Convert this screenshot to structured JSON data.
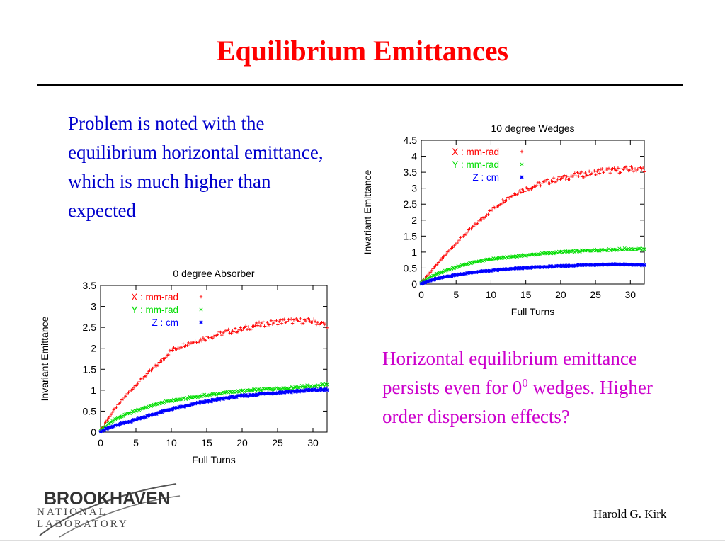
{
  "slide": {
    "title": "Equilibrium Emittances",
    "left_text": "Problem is noted with the equilibrium horizontal emittance, which is much higher than expected",
    "right_text_before": "Horizontal equilibrium emittance persists even for 0",
    "right_text_sup": "0",
    "right_text_after": " wedges.  Higher order dispersion effects?",
    "logo_top": "BROOKHAVEN",
    "logo_bottom": "NATIONAL LABORATORY",
    "author": "Harold G. Kirk",
    "colors": {
      "title": "#ff0000",
      "left_text": "#0000cc",
      "right_text": "#cc00cc"
    }
  },
  "chart_data": [
    {
      "type": "scatter",
      "title": "10 degree Wedges",
      "xlabel": "Full Turns",
      "ylabel": "Invariant Emittance",
      "xlim": [
        0,
        32
      ],
      "ylim": [
        0,
        4.5
      ],
      "xticks": [
        0,
        5,
        10,
        15,
        20,
        25,
        30
      ],
      "yticks": [
        0,
        0.5,
        1,
        1.5,
        2,
        2.5,
        3,
        3.5,
        4,
        4.5
      ],
      "grid": false,
      "legend": "top-left",
      "series": [
        {
          "name": "X : mm-rad",
          "marker": "+",
          "color": "#ff0000",
          "x": [
            0,
            2,
            4,
            6,
            8,
            10,
            12,
            14,
            16,
            18,
            20,
            22,
            24,
            26,
            28,
            30,
            32
          ],
          "y": [
            0.05,
            0.55,
            1.05,
            1.5,
            1.9,
            2.3,
            2.65,
            2.9,
            3.05,
            3.2,
            3.3,
            3.4,
            3.45,
            3.55,
            3.55,
            3.6,
            3.6
          ]
        },
        {
          "name": "Y : mm-rad",
          "marker": "x",
          "color": "#00dd00",
          "x": [
            0,
            2,
            4,
            6,
            8,
            10,
            12,
            14,
            16,
            18,
            20,
            22,
            24,
            26,
            28,
            30,
            32
          ],
          "y": [
            0.05,
            0.3,
            0.45,
            0.6,
            0.7,
            0.78,
            0.83,
            0.88,
            0.92,
            0.96,
            1.0,
            1.02,
            1.05,
            1.07,
            1.08,
            1.1,
            1.08
          ]
        },
        {
          "name": "Z : cm",
          "marker": "*",
          "color": "#0000ff",
          "x": [
            0,
            2,
            4,
            6,
            8,
            10,
            12,
            14,
            16,
            18,
            20,
            22,
            24,
            26,
            28,
            30,
            32
          ],
          "y": [
            0.02,
            0.15,
            0.25,
            0.32,
            0.38,
            0.42,
            0.46,
            0.49,
            0.52,
            0.54,
            0.56,
            0.58,
            0.6,
            0.61,
            0.62,
            0.6,
            0.6
          ]
        }
      ]
    },
    {
      "type": "scatter",
      "title": "0 degree Absorber",
      "xlabel": "Full Turns",
      "ylabel": "Invariant Emittance",
      "xlim": [
        0,
        32
      ],
      "ylim": [
        0,
        3.5
      ],
      "xticks": [
        0,
        5,
        10,
        15,
        20,
        25,
        30
      ],
      "yticks": [
        0,
        0.5,
        1,
        1.5,
        2,
        2.5,
        3,
        3.5
      ],
      "grid": false,
      "legend": "top-left",
      "series": [
        {
          "name": "X : mm-rad",
          "marker": "+",
          "color": "#ff0000",
          "x": [
            0,
            2,
            4,
            6,
            8,
            10,
            12,
            14,
            16,
            18,
            20,
            22,
            24,
            26,
            28,
            30,
            32
          ],
          "y": [
            0.05,
            0.55,
            0.95,
            1.3,
            1.6,
            1.95,
            2.1,
            2.2,
            2.3,
            2.4,
            2.45,
            2.55,
            2.6,
            2.65,
            2.65,
            2.65,
            2.55
          ]
        },
        {
          "name": "Y : mm-rad",
          "marker": "x",
          "color": "#00dd00",
          "x": [
            0,
            2,
            4,
            6,
            8,
            10,
            12,
            14,
            16,
            18,
            20,
            22,
            24,
            26,
            28,
            30,
            32
          ],
          "y": [
            0.05,
            0.3,
            0.45,
            0.57,
            0.67,
            0.75,
            0.8,
            0.86,
            0.9,
            0.95,
            0.98,
            1.0,
            1.03,
            1.05,
            1.08,
            1.1,
            1.12
          ]
        },
        {
          "name": "Z : cm",
          "marker": "*",
          "color": "#0000ff",
          "x": [
            0,
            2,
            4,
            6,
            8,
            10,
            12,
            14,
            16,
            18,
            20,
            22,
            24,
            26,
            28,
            30,
            32
          ],
          "y": [
            0.02,
            0.15,
            0.25,
            0.35,
            0.45,
            0.55,
            0.62,
            0.7,
            0.76,
            0.82,
            0.86,
            0.9,
            0.93,
            0.96,
            0.98,
            1.0,
            1.02
          ]
        }
      ]
    }
  ]
}
